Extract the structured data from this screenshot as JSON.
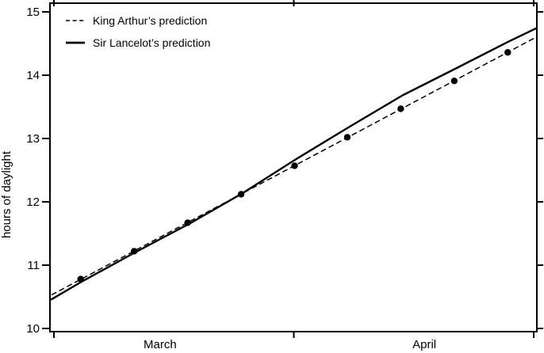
{
  "figure": {
    "background_color": "#ffffff",
    "ink_color": "#000000"
  },
  "legend": {
    "items": [
      {
        "label": "King Arthur’s prediction",
        "style": "dashed"
      },
      {
        "label": "Sir Lancelot’s prediction",
        "style": "solid"
      }
    ]
  },
  "axes": {
    "ylabel": "hours of daylight",
    "y_tick_labels": [
      "10",
      "11",
      "12",
      "13",
      "14",
      "15"
    ],
    "x_month_labels": [
      "March",
      "April"
    ]
  },
  "chart_data": {
    "type": "line",
    "title": "",
    "xlabel": "",
    "ylabel": "hours of daylight",
    "x_unit": "days from March 1",
    "xlim_days": [
      -0.5,
      61.4
    ],
    "ylim": [
      9.95,
      15.15
    ],
    "y_ticks": [
      10,
      11,
      12,
      13,
      14,
      15
    ],
    "x_ticks": [
      {
        "day": 0
      },
      {
        "day": 30.5
      },
      {
        "day": 61
      }
    ],
    "month_labels": [
      {
        "text": "March",
        "center_day": 13.5
      },
      {
        "text": "April",
        "center_day": 47.1
      }
    ],
    "grid": false,
    "legend_position": "top-left",
    "series": [
      {
        "name": "King Arthur’s prediction",
        "style": "dashed",
        "points": [
          {
            "day": -0.3,
            "hours": 10.53
          },
          {
            "day": 61.3,
            "hours": 14.6
          }
        ]
      },
      {
        "name": "Sir Lancelot’s prediction",
        "style": "solid",
        "points": [
          {
            "day": -0.3,
            "hours": 10.46
          },
          {
            "day": 3.4,
            "hours": 10.73
          },
          {
            "day": 10.3,
            "hours": 11.2
          },
          {
            "day": 17.3,
            "hours": 11.66
          },
          {
            "day": 23.9,
            "hours": 12.13
          },
          {
            "day": 30.6,
            "hours": 12.66
          },
          {
            "day": 37.5,
            "hours": 13.18
          },
          {
            "day": 44.3,
            "hours": 13.68
          },
          {
            "day": 51.0,
            "hours": 14.1
          },
          {
            "day": 57.8,
            "hours": 14.53
          },
          {
            "day": 61.3,
            "hours": 14.74
          }
        ]
      },
      {
        "name": "data points",
        "style": "dots",
        "points": [
          {
            "day": 3.4,
            "hours": 10.78
          },
          {
            "day": 10.2,
            "hours": 11.22
          },
          {
            "day": 17.0,
            "hours": 11.67
          },
          {
            "day": 23.8,
            "hours": 12.12
          },
          {
            "day": 30.6,
            "hours": 12.57
          },
          {
            "day": 37.3,
            "hours": 13.02
          },
          {
            "day": 44.1,
            "hours": 13.47
          },
          {
            "day": 50.9,
            "hours": 13.91
          },
          {
            "day": 57.7,
            "hours": 14.36
          }
        ]
      }
    ]
  }
}
